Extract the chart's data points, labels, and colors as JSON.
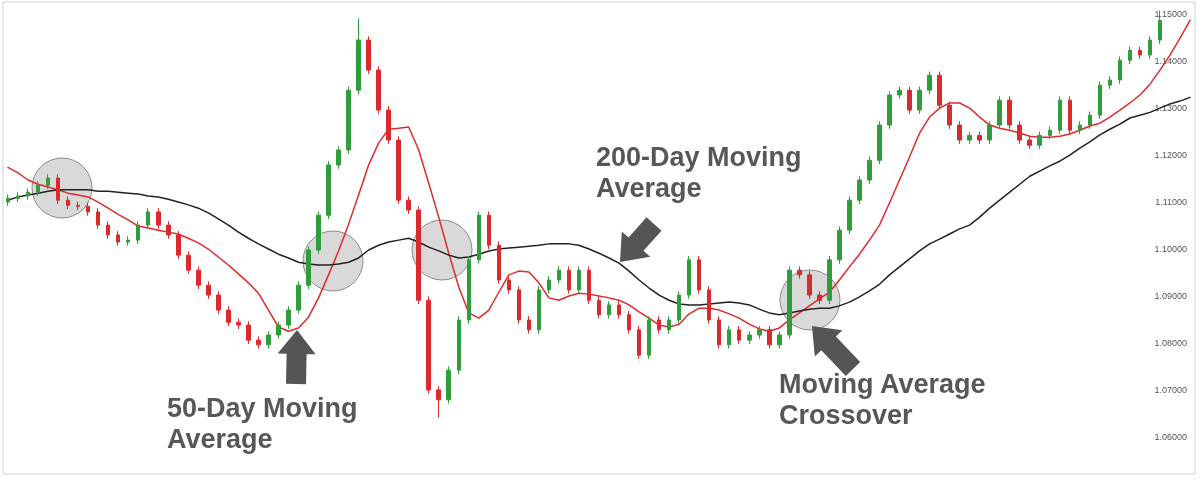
{
  "chart_data": {
    "type": "candlestick",
    "categories": [
      null,
      null,
      null,
      null,
      null,
      null,
      null,
      null,
      null,
      null,
      null,
      null,
      null,
      null,
      null,
      null,
      null,
      null,
      null,
      null,
      null,
      null,
      null,
      null,
      null,
      null,
      null,
      null,
      null,
      null,
      null,
      null,
      null,
      null,
      null,
      null,
      null,
      null,
      null,
      null,
      null,
      null,
      null,
      null,
      null,
      null,
      null,
      null,
      null,
      null,
      null,
      null,
      null,
      null,
      null,
      null,
      null,
      null,
      null,
      null,
      null,
      null,
      null,
      null,
      null,
      null,
      null,
      null,
      null,
      null,
      null,
      null,
      null,
      null,
      null,
      null,
      null,
      null,
      null,
      null,
      null,
      null,
      null,
      null,
      null,
      null,
      null,
      null,
      null,
      null,
      null,
      null,
      null,
      null,
      null,
      null,
      null,
      null,
      null,
      null,
      null,
      null,
      null,
      null,
      null,
      null,
      null,
      null,
      null,
      null,
      null,
      null,
      null,
      null,
      null,
      null,
      null,
      null,
      null
    ],
    "ohlc": [
      [
        1.11,
        1.1116,
        1.1092,
        1.1108
      ],
      [
        1.1108,
        1.1121,
        1.11,
        1.1113
      ],
      [
        1.1113,
        1.1129,
        1.1105,
        1.1121
      ],
      [
        1.1121,
        1.1144,
        1.1113,
        1.1136
      ],
      [
        1.1136,
        1.1159,
        1.1128,
        1.1151
      ],
      [
        1.1151,
        1.1159,
        1.1096,
        1.1104
      ],
      [
        1.1104,
        1.1112,
        1.1085,
        1.1093
      ],
      [
        1.1093,
        1.1101,
        1.1083,
        1.1091
      ],
      [
        1.1091,
        1.1099,
        1.1071,
        1.1079
      ],
      [
        1.1079,
        1.1087,
        1.1043,
        1.1051
      ],
      [
        1.1051,
        1.1059,
        1.1022,
        1.103
      ],
      [
        1.103,
        1.1038,
        1.1007,
        1.1015
      ],
      [
        1.1015,
        1.1027,
        1.1007,
        1.1019
      ],
      [
        1.1019,
        1.1059,
        1.1011,
        1.1051
      ],
      [
        1.1051,
        1.1087,
        1.1043,
        1.1079
      ],
      [
        1.1079,
        1.1087,
        1.1043,
        1.1051
      ],
      [
        1.1051,
        1.1059,
        1.1022,
        1.103
      ],
      [
        1.103,
        1.1038,
        1.0979,
        1.0987
      ],
      [
        1.0987,
        1.0995,
        1.0947,
        1.0955
      ],
      [
        1.0955,
        1.0963,
        1.0915,
        1.0923
      ],
      [
        1.0923,
        1.0931,
        1.0894,
        1.0902
      ],
      [
        1.0902,
        1.091,
        1.0862,
        1.087
      ],
      [
        1.087,
        1.0878,
        1.0836,
        1.0844
      ],
      [
        1.0844,
        1.0852,
        1.083,
        1.0838
      ],
      [
        1.0838,
        1.0846,
        1.0798,
        1.0806
      ],
      [
        1.0806,
        1.0814,
        1.0788,
        1.0796
      ],
      [
        1.0796,
        1.0825,
        1.0788,
        1.0817
      ],
      [
        1.0817,
        1.0846,
        1.0809,
        1.0838
      ],
      [
        1.0838,
        1.0878,
        1.083,
        1.087
      ],
      [
        1.087,
        1.0931,
        1.0862,
        1.0923
      ],
      [
        1.0923,
        1.1006,
        1.0915,
        1.0998
      ],
      [
        1.0998,
        1.108,
        1.099,
        1.1072
      ],
      [
        1.1072,
        1.1187,
        1.1064,
        1.1179
      ],
      [
        1.1179,
        1.1219,
        1.1171,
        1.1211
      ],
      [
        1.1211,
        1.1346,
        1.1203,
        1.1338
      ],
      [
        1.1338,
        1.1491,
        1.133,
        1.1445
      ],
      [
        1.1445,
        1.1453,
        1.1373,
        1.1381
      ],
      [
        1.1381,
        1.1389,
        1.1288,
        1.1296
      ],
      [
        1.1296,
        1.1304,
        1.1224,
        1.1232
      ],
      [
        1.1232,
        1.124,
        1.1096,
        1.1104
      ],
      [
        1.1104,
        1.1112,
        1.1075,
        1.1083
      ],
      [
        1.1083,
        1.1091,
        1.0883,
        1.0891
      ],
      [
        1.0891,
        1.0899,
        1.0692,
        1.07
      ],
      [
        1.07,
        1.0708,
        1.0641,
        1.0679
      ],
      [
        1.0679,
        1.075,
        1.0671,
        1.0742
      ],
      [
        1.0742,
        1.0857,
        1.0734,
        1.0849
      ],
      [
        1.0849,
        1.0985,
        1.0841,
        1.0977
      ],
      [
        1.0977,
        1.108,
        1.0969,
        1.1072
      ],
      [
        1.1072,
        1.108,
        1.1,
        1.1008
      ],
      [
        1.1008,
        1.1016,
        1.0926,
        1.0934
      ],
      [
        1.0934,
        1.0942,
        1.0905,
        1.0913
      ],
      [
        1.0913,
        1.0921,
        1.0841,
        1.0849
      ],
      [
        1.0849,
        1.0857,
        1.082,
        1.0828
      ],
      [
        1.0828,
        1.0921,
        1.082,
        1.0913
      ],
      [
        1.0913,
        1.0942,
        1.0905,
        1.0934
      ],
      [
        1.0934,
        1.0963,
        1.0926,
        1.0955
      ],
      [
        1.0955,
        1.0963,
        1.0905,
        1.0913
      ],
      [
        1.0913,
        1.0963,
        1.0905,
        1.0955
      ],
      [
        1.0955,
        1.0963,
        1.0883,
        1.0891
      ],
      [
        1.0891,
        1.0899,
        1.0852,
        1.086
      ],
      [
        1.086,
        1.0889,
        1.0852,
        1.0881
      ],
      [
        1.0881,
        1.0889,
        1.0852,
        1.086
      ],
      [
        1.086,
        1.0868,
        1.082,
        1.0828
      ],
      [
        1.0828,
        1.0836,
        1.0766,
        1.0774
      ],
      [
        1.0774,
        1.0857,
        1.0766,
        1.0849
      ],
      [
        1.0849,
        1.0857,
        1.082,
        1.0828
      ],
      [
        1.0828,
        1.0857,
        1.082,
        1.0849
      ],
      [
        1.0849,
        1.091,
        1.0841,
        1.0902
      ],
      [
        1.0902,
        1.0985,
        1.0894,
        1.0977
      ],
      [
        1.0977,
        1.0985,
        1.0905,
        1.0913
      ],
      [
        1.0913,
        1.0921,
        1.0841,
        1.0849
      ],
      [
        1.0849,
        1.0857,
        1.0788,
        1.0796
      ],
      [
        1.0796,
        1.0836,
        1.0788,
        1.0828
      ],
      [
        1.0828,
        1.0836,
        1.0798,
        1.0806
      ],
      [
        1.0806,
        1.0825,
        1.0798,
        1.0817
      ],
      [
        1.0817,
        1.0836,
        1.0809,
        1.0828
      ],
      [
        1.0828,
        1.0836,
        1.0788,
        1.0796
      ],
      [
        1.0796,
        1.0825,
        1.0788,
        1.0817
      ],
      [
        1.0817,
        1.0963,
        1.0809,
        1.0955
      ],
      [
        1.0955,
        1.0963,
        1.0937,
        1.0945
      ],
      [
        1.0945,
        1.0953,
        1.0894,
        1.0902
      ],
      [
        1.0902,
        1.091,
        1.0883,
        1.0891
      ],
      [
        1.0891,
        1.0985,
        1.0883,
        1.0977
      ],
      [
        1.0977,
        1.1048,
        1.0969,
        1.104
      ],
      [
        1.104,
        1.1112,
        1.1032,
        1.1104
      ],
      [
        1.1104,
        1.1155,
        1.1096,
        1.1147
      ],
      [
        1.1147,
        1.1197,
        1.1139,
        1.1189
      ],
      [
        1.1189,
        1.1272,
        1.1181,
        1.1264
      ],
      [
        1.1264,
        1.1336,
        1.1256,
        1.1328
      ],
      [
        1.1328,
        1.1346,
        1.132,
        1.1338
      ],
      [
        1.1338,
        1.1346,
        1.1288,
        1.1296
      ],
      [
        1.1296,
        1.1346,
        1.1288,
        1.1338
      ],
      [
        1.1338,
        1.1378,
        1.133,
        1.137
      ],
      [
        1.137,
        1.1378,
        1.1298,
        1.1306
      ],
      [
        1.1306,
        1.1314,
        1.1256,
        1.1264
      ],
      [
        1.1264,
        1.1272,
        1.1224,
        1.1232
      ],
      [
        1.1232,
        1.125,
        1.1224,
        1.1242
      ],
      [
        1.1242,
        1.125,
        1.1224,
        1.1232
      ],
      [
        1.1232,
        1.1272,
        1.1224,
        1.1264
      ],
      [
        1.1264,
        1.1325,
        1.1256,
        1.1317
      ],
      [
        1.1317,
        1.1325,
        1.1256,
        1.1264
      ],
      [
        1.1264,
        1.1272,
        1.1224,
        1.1232
      ],
      [
        1.1232,
        1.124,
        1.1213,
        1.1221
      ],
      [
        1.1221,
        1.125,
        1.1213,
        1.1242
      ],
      [
        1.1242,
        1.1261,
        1.1234,
        1.1253
      ],
      [
        1.1253,
        1.1325,
        1.1245,
        1.1317
      ],
      [
        1.1317,
        1.1325,
        1.1245,
        1.1253
      ],
      [
        1.1253,
        1.1272,
        1.1245,
        1.1264
      ],
      [
        1.1264,
        1.1293,
        1.1256,
        1.1285
      ],
      [
        1.1285,
        1.1357,
        1.1277,
        1.1349
      ],
      [
        1.1349,
        1.1368,
        1.1341,
        1.136
      ],
      [
        1.136,
        1.141,
        1.1352,
        1.1402
      ],
      [
        1.1402,
        1.1431,
        1.1394,
        1.1423
      ],
      [
        1.1423,
        1.1431,
        1.1405,
        1.1413
      ],
      [
        1.1413,
        1.1453,
        1.1405,
        1.1445
      ],
      [
        1.1445,
        1.1508,
        1.1437,
        1.1487
      ],
      null,
      null,
      null
    ],
    "colors": [
      "#2e9e3a",
      "#2e9e3a",
      "#2e9e3a",
      "#2e9e3a",
      "#2e9e3a",
      "#d92b2b",
      "#d92b2b",
      "#d92b2b",
      "#d92b2b",
      "#d92b2b",
      "#d92b2b",
      "#d92b2b",
      "#2e9e3a",
      "#2e9e3a",
      "#2e9e3a",
      "#d92b2b",
      "#d92b2b",
      "#d92b2b",
      "#d92b2b",
      "#d92b2b",
      "#d92b2b",
      "#d92b2b",
      "#d92b2b",
      "#d92b2b",
      "#d92b2b",
      "#d92b2b",
      "#2e9e3a",
      "#2e9e3a",
      "#2e9e3a",
      "#2e9e3a",
      "#2e9e3a",
      "#2e9e3a",
      "#2e9e3a",
      "#2e9e3a",
      "#2e9e3a",
      "#2e9e3a",
      "#d92b2b",
      "#d92b2b",
      "#d92b2b",
      "#d92b2b",
      "#d92b2b",
      "#d92b2b",
      "#d92b2b",
      "#d92b2b",
      "#2e9e3a",
      "#2e9e3a",
      "#2e9e3a",
      "#2e9e3a",
      "#d92b2b",
      "#d92b2b",
      "#d92b2b",
      "#d92b2b",
      "#d92b2b",
      "#2e9e3a",
      "#2e9e3a",
      "#2e9e3a",
      "#d92b2b",
      "#2e9e3a",
      "#d92b2b",
      "#d92b2b",
      "#2e9e3a",
      "#d92b2b",
      "#d92b2b",
      "#d92b2b",
      "#2e9e3a",
      "#d92b2b",
      "#2e9e3a",
      "#2e9e3a",
      "#2e9e3a",
      "#d92b2b",
      "#d92b2b",
      "#d92b2b",
      "#2e9e3a",
      "#d92b2b",
      "#2e9e3a",
      "#2e9e3a",
      "#d92b2b",
      "#2e9e3a",
      "#2e9e3a",
      "#d92b2b",
      "#d92b2b",
      "#d92b2b",
      "#2e9e3a",
      "#2e9e3a",
      "#2e9e3a",
      "#2e9e3a",
      "#2e9e3a",
      "#2e9e3a",
      "#2e9e3a",
      "#2e9e3a",
      "#d92b2b",
      "#2e9e3a",
      "#2e9e3a",
      "#d92b2b",
      "#d92b2b",
      "#d92b2b",
      "#2e9e3a",
      "#d92b2b",
      "#2e9e3a",
      "#2e9e3a",
      "#d92b2b",
      "#d92b2b",
      "#d92b2b",
      "#2e9e3a",
      "#2e9e3a",
      "#2e9e3a",
      "#d92b2b",
      "#2e9e3a",
      "#2e9e3a",
      "#2e9e3a",
      "#2e9e3a",
      "#2e9e3a",
      "#2e9e3a",
      "#d92b2b",
      "#2e9e3a",
      "#2e9e3a",
      null,
      null,
      null
    ],
    "series": [
      {
        "type": "line",
        "color": "#e02a2a",
        "values": [
          1.1174,
          1.1162,
          1.1147,
          1.1138,
          1.1132,
          1.1126,
          1.1119,
          1.1115,
          1.1111,
          1.11,
          1.1087,
          1.1074,
          1.1062,
          1.1049,
          1.1045,
          1.104,
          1.1036,
          1.1032,
          1.1023,
          1.1013,
          1.1,
          1.0983,
          1.0966,
          1.0947,
          1.0928,
          1.0906,
          1.087,
          1.0834,
          1.0825,
          1.0832,
          1.0855,
          1.0896,
          1.0945,
          1.0996,
          1.1053,
          1.1115,
          1.1179,
          1.1226,
          1.1255,
          1.1257,
          1.126,
          1.1211,
          1.114,
          1.1068,
          1.0991,
          1.0919,
          1.0864,
          1.0853,
          1.087,
          1.0908,
          1.0945,
          1.0953,
          1.0951,
          1.0928,
          1.0896,
          1.0891,
          1.09,
          1.0906,
          1.0904,
          1.09,
          1.0896,
          1.0891,
          1.0881,
          1.0866,
          1.0853,
          1.0838,
          1.0834,
          1.084,
          1.0862,
          1.0874,
          1.0874,
          1.087,
          1.0862,
          1.0853,
          1.084,
          1.083,
          1.0825,
          1.0832,
          1.0849,
          1.0864,
          1.0879,
          1.0894,
          1.0908,
          1.0934,
          1.0962,
          1.0989,
          1.1019,
          1.1051,
          1.1098,
          1.1147,
          1.1196,
          1.1247,
          1.1281,
          1.13,
          1.1311,
          1.1311,
          1.13,
          1.1281,
          1.1264,
          1.1257,
          1.1253,
          1.1247,
          1.124,
          1.1238,
          1.1238,
          1.124,
          1.1245,
          1.1253,
          1.1262,
          1.1268,
          1.1281,
          1.1296,
          1.1311,
          1.1328,
          1.1351,
          1.1381,
          1.1413,
          1.1449,
          1.1487
        ]
      },
      {
        "type": "line",
        "color": "#222222",
        "values": [
          1.1104,
          1.1111,
          1.1115,
          1.1119,
          1.1123,
          1.1126,
          1.1126,
          1.1126,
          1.1126,
          1.1123,
          1.1123,
          1.1121,
          1.1119,
          1.1117,
          1.1113,
          1.1111,
          1.1106,
          1.11,
          1.1094,
          1.1087,
          1.1077,
          1.1064,
          1.1051,
          1.1036,
          1.1023,
          1.1011,
          1.1,
          1.0989,
          1.0981,
          1.0972,
          1.0968,
          1.0966,
          1.0966,
          1.0968,
          1.0972,
          1.0981,
          1.0998,
          1.1008,
          1.1015,
          1.1019,
          1.1023,
          1.1015,
          1.1004,
          1.0996,
          1.0987,
          1.0981,
          1.0983,
          1.0989,
          1.0996,
          1.1,
          1.1002,
          1.1004,
          1.1006,
          1.1008,
          1.1011,
          1.1011,
          1.1011,
          1.1008,
          1.1,
          1.0991,
          1.0981,
          1.097,
          1.0953,
          1.0934,
          1.0917,
          1.0902,
          1.0891,
          1.0883,
          1.0881,
          1.0881,
          1.0883,
          1.0885,
          1.0887,
          1.0885,
          1.0881,
          1.0872,
          1.0864,
          1.086,
          1.0864,
          1.0868,
          1.0872,
          1.0874,
          1.0874,
          1.0879,
          1.0887,
          1.0898,
          1.0911,
          1.0925,
          1.0945,
          1.0962,
          1.0979,
          1.0996,
          1.1011,
          1.1021,
          1.1032,
          1.1043,
          1.1051,
          1.1068,
          1.1087,
          1.1104,
          1.1121,
          1.1138,
          1.1155,
          1.1166,
          1.1177,
          1.1187,
          1.12,
          1.1215,
          1.1228,
          1.1243,
          1.1255,
          1.1266,
          1.1279,
          1.1285,
          1.1291,
          1.13,
          1.1309,
          1.1315,
          1.1323
        ]
      }
    ],
    "ylim": [
      1.0521,
      1.1526
    ],
    "yticks": [
      {
        "value": 1.06,
        "label": "1.06000"
      },
      {
        "value": 1.07,
        "label": "1.07000"
      },
      {
        "value": 1.08,
        "label": "1.08000"
      },
      {
        "value": 1.09,
        "label": "1.09000"
      },
      {
        "value": 1.1,
        "label": "1.10000"
      },
      {
        "value": 1.11,
        "label": "1.11000"
      },
      {
        "value": 1.12,
        "label": "1.12000"
      },
      {
        "value": 1.13,
        "label": "1.13000"
      },
      {
        "value": 1.14,
        "label": "1.14000"
      },
      {
        "value": 1.15,
        "label": "1.15000"
      }
    ],
    "tick_labels": "y",
    "annotations": [
      "50-Day Moving Average",
      "200-Day Moving Average",
      "Moving Average Crossover"
    ]
  }
}
